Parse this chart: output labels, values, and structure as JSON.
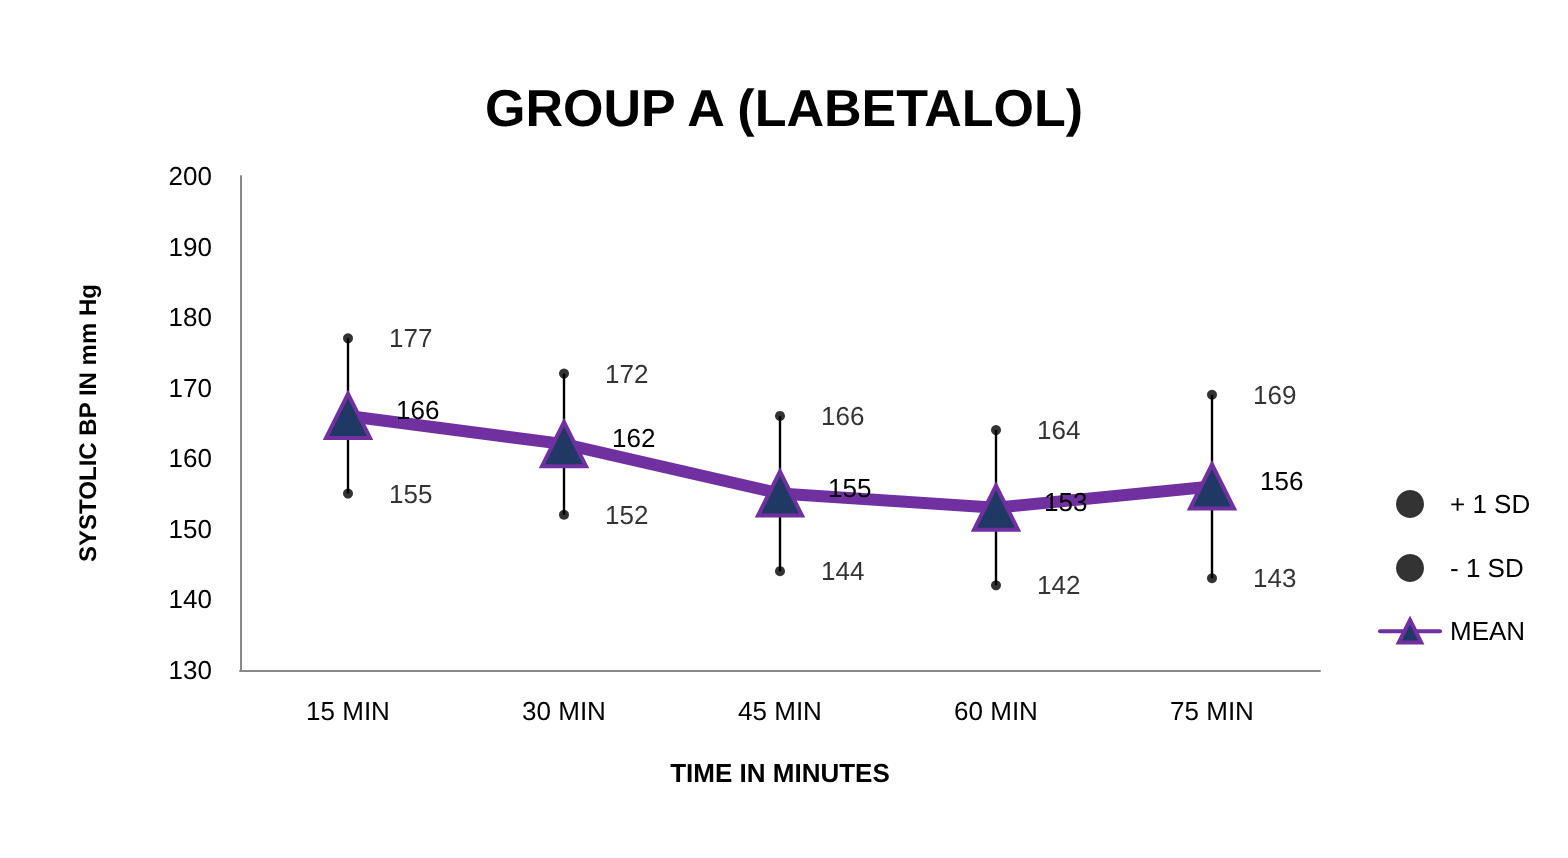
{
  "chart_data": {
    "type": "line",
    "title": "GROUP A (LABETALOL)",
    "xlabel": "TIME IN MINUTES",
    "ylabel": "SYSTOLIC BP IN mm Hg",
    "categories": [
      "15 MIN",
      "30 MIN",
      "45 MIN",
      "60 MIN",
      "75 MIN"
    ],
    "series": [
      {
        "name": "+ 1 SD",
        "type": "scatter",
        "marker": "circle",
        "color": "#000000",
        "values": [
          177,
          172,
          166,
          164,
          169
        ],
        "value_labels": [
          "177",
          "172",
          "166",
          "164",
          "169"
        ]
      },
      {
        "name": "- 1 SD",
        "type": "scatter",
        "marker": "circle",
        "color": "#000000",
        "values": [
          155,
          152,
          144,
          142,
          143
        ],
        "value_labels": [
          "155",
          "152",
          "144",
          "142",
          "143"
        ]
      },
      {
        "name": "MEAN",
        "type": "line",
        "marker": "triangle",
        "color": "#7030a0",
        "values": [
          166,
          162,
          155,
          153,
          156
        ],
        "value_labels": [
          "166",
          "162",
          "155",
          "153",
          "156"
        ]
      }
    ],
    "ylim": [
      130,
      200
    ],
    "yticks": [
      130,
      140,
      150,
      160,
      170,
      180,
      190,
      200
    ],
    "grid": false,
    "legend": "right"
  }
}
